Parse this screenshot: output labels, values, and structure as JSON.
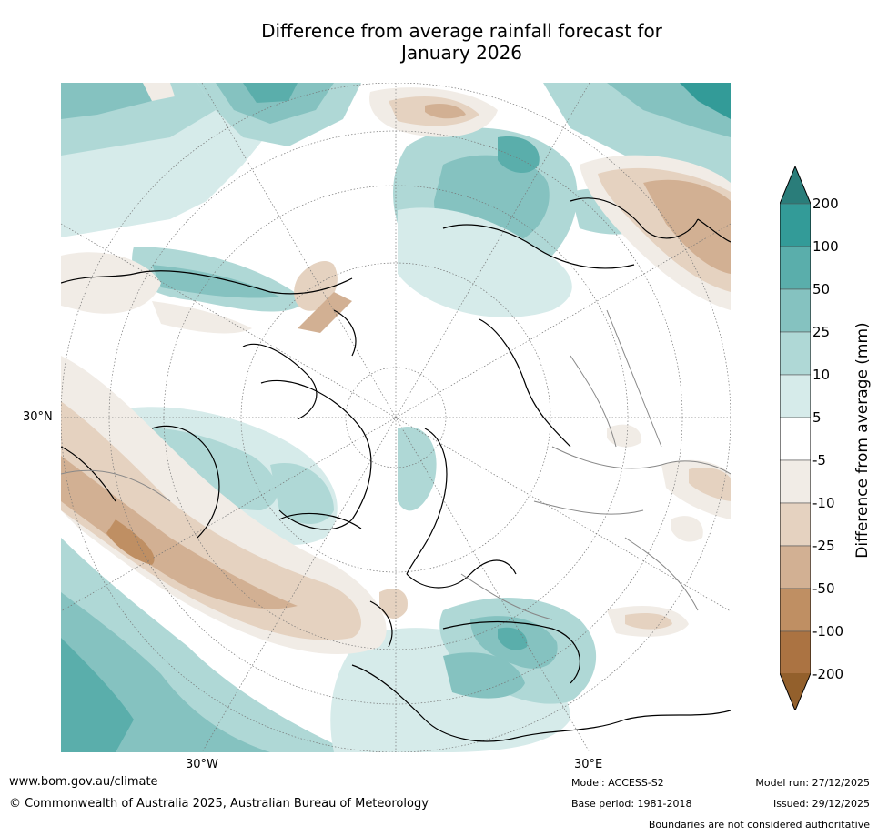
{
  "title_line1": "Difference from average rainfall forecast for",
  "title_line2": "January 2026",
  "map": {
    "lat_label": "30°N",
    "lon_labels": [
      "30°W",
      "30°E"
    ]
  },
  "colorbar": {
    "label": "Difference from average (mm)",
    "ticks": [
      "200",
      "100",
      "50",
      "25",
      "10",
      "5",
      "-5",
      "-10",
      "-25",
      "-50",
      "-100",
      "-200"
    ],
    "colors": [
      "#2a7d7a",
      "#339b98",
      "#5aaeab",
      "#85c2c0",
      "#afd8d6",
      "#d6ebea",
      "#ffffff",
      "#f1ece6",
      "#e5d2c0",
      "#d2b093",
      "#bf8f63",
      "#ab7342",
      "#93602c"
    ]
  },
  "footer": {
    "website": "www.bom.gov.au/climate",
    "copyright": "© Commonwealth of Australia 2025, Australian Bureau of Meteorology",
    "model": "Model: ACCESS-S2",
    "base_period": "Base period: 1981-2018",
    "model_run": "Model run: 27/12/2025",
    "issued": "Issued: 29/12/2025",
    "disclaimer": "Boundaries are not considered authoritative"
  }
}
